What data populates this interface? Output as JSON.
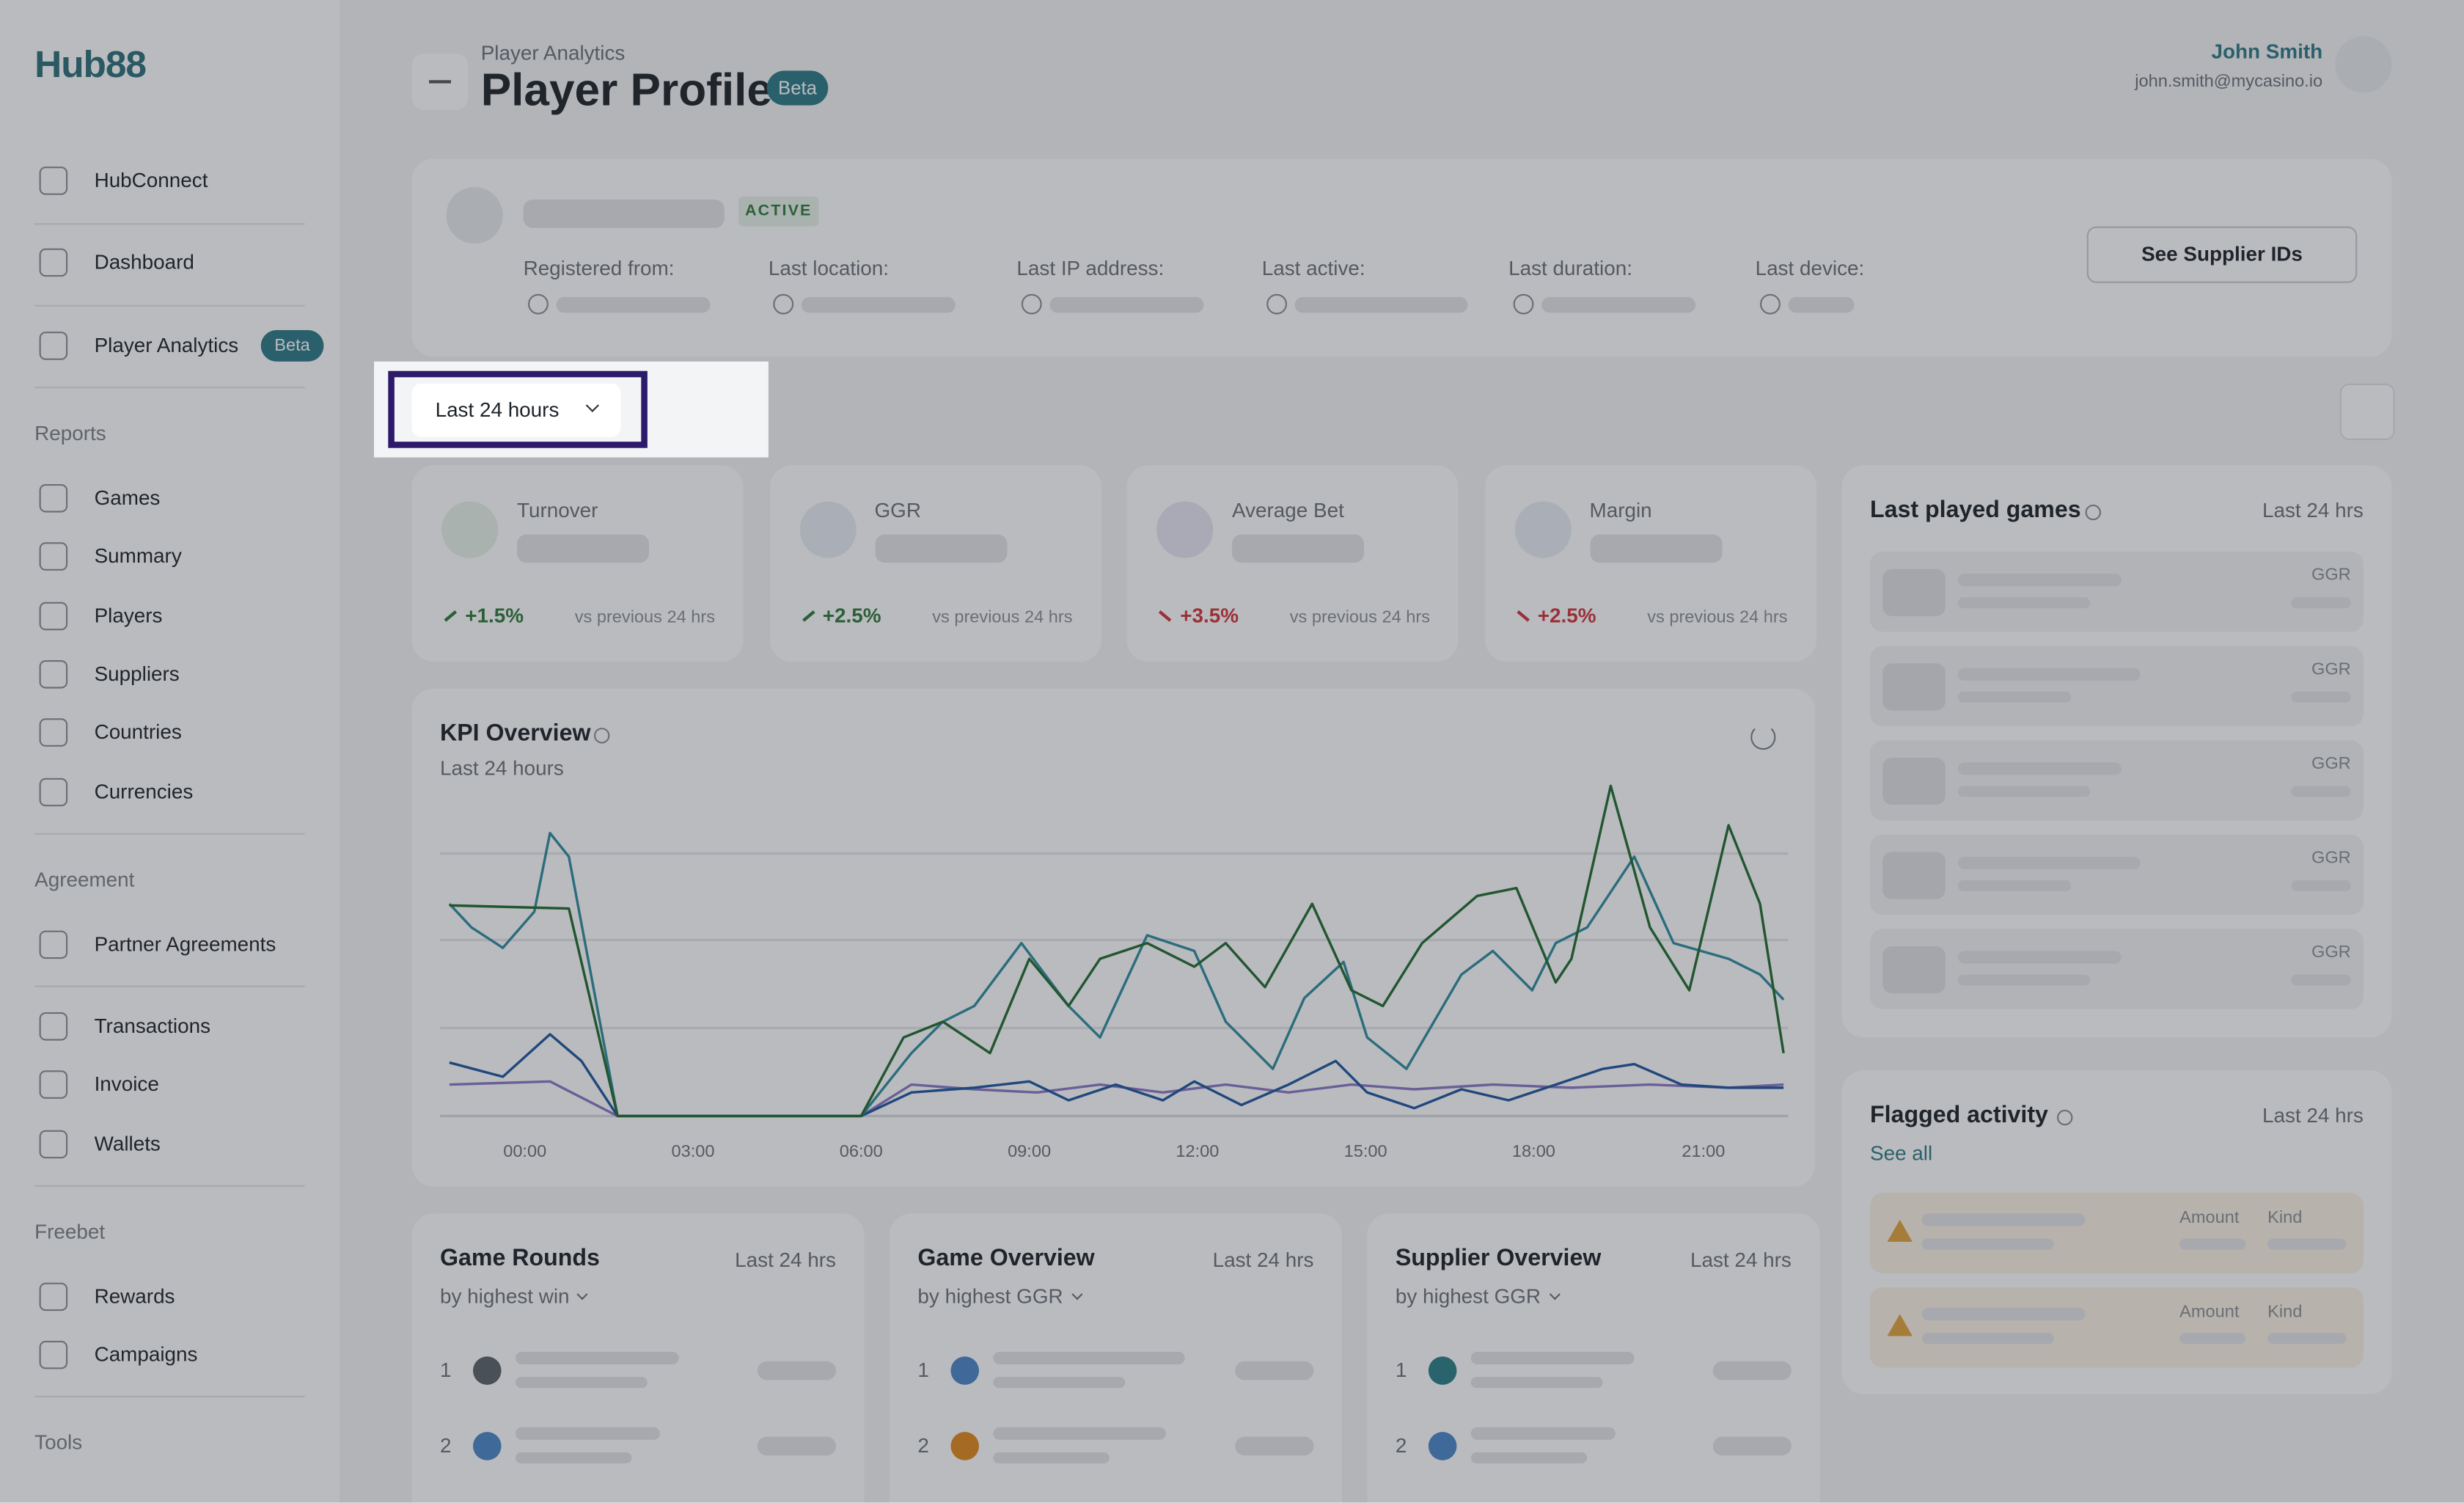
{
  "sidebar": {
    "logo": "Hub88",
    "badge": "Beta",
    "nav": [
      {
        "label": "HubConnect"
      },
      {
        "label": "Dashboard"
      },
      {
        "label": "Player Analytics"
      },
      {
        "heading": "Reports"
      },
      {
        "label": "Games"
      },
      {
        "label": "Summary"
      },
      {
        "label": "Players"
      },
      {
        "label": "Suppliers"
      },
      {
        "label": "Countries"
      },
      {
        "label": "Currencies"
      },
      {
        "heading": "Agreement"
      },
      {
        "label": "Partner Agreements"
      },
      {
        "label": "Transactions"
      },
      {
        "label": "Invoice"
      },
      {
        "label": "Wallets"
      },
      {
        "heading": "Freebet"
      },
      {
        "label": "Rewards"
      },
      {
        "label": "Campaigns"
      },
      {
        "heading": "Tools"
      }
    ]
  },
  "header": {
    "breadcrumb": "Player Analytics",
    "title": "Player Profile",
    "badge": "Beta",
    "user_name": "John Smith",
    "user_email": "john.smith@mycasino.io"
  },
  "profile": {
    "status": "ACTIVE",
    "fields": [
      "Registered from:",
      "Last location:",
      "Last IP address:",
      "Last active:",
      "Last duration:",
      "Last device:"
    ],
    "button": "See Supplier IDs"
  },
  "filter": {
    "period": "Last 24 hours"
  },
  "kpis": [
    {
      "label": "Turnover",
      "change": "+1.5%",
      "compare": "vs previous 24 hrs",
      "trend": "up"
    },
    {
      "label": "GGR",
      "change": "+2.5%",
      "compare": "vs previous 24 hrs",
      "trend": "up"
    },
    {
      "label": "Average Bet",
      "change": "+3.5%",
      "compare": "vs previous 24 hrs",
      "trend": "down"
    },
    {
      "label": "Margin",
      "change": "+2.5%",
      "compare": "vs previous 24 hrs",
      "trend": "down"
    }
  ],
  "kpi_overview": {
    "title": "KPI Overview",
    "subtitle": "Last 24 hours",
    "x_labels": [
      "00:00",
      "03:00",
      "06:00",
      "09:00",
      "12:00",
      "15:00",
      "18:00",
      "21:00"
    ]
  },
  "last_played": {
    "title": "Last played games",
    "period": "Last 24 hrs",
    "rows": [
      "GGR",
      "GGR",
      "GGR",
      "GGR",
      "GGR"
    ]
  },
  "flagged": {
    "title": "Flagged activity",
    "period": "Last 24 hrs",
    "see_all": "See all",
    "rows": [
      {
        "amount": "Amount",
        "kind": "Kind"
      },
      {
        "amount": "Amount",
        "kind": "Kind"
      }
    ]
  },
  "bottom_cards": [
    {
      "title": "Game Rounds",
      "subtitle": "by highest win",
      "period": "Last 24 hrs",
      "ranks": [
        "1",
        "2"
      ]
    },
    {
      "title": "Game Overview",
      "subtitle": "by highest GGR",
      "period": "Last 24 hrs",
      "ranks": [
        "1",
        "2"
      ]
    },
    {
      "title": "Supplier Overview",
      "subtitle": "by highest GGR",
      "period": "Last 24 hrs",
      "ranks": [
        "1",
        "2"
      ]
    }
  ]
}
